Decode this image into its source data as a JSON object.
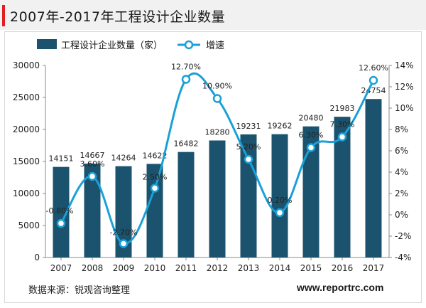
{
  "page": {
    "title": "2007年-2017年工程设计企业数量",
    "source": "数据来源：锐观咨询整理",
    "site": "www.reportrc.com"
  },
  "colors": {
    "bar": "#1b536e",
    "line": "#1aa0d8",
    "marker_fill": "#ffffff",
    "title_accent": "#e02020"
  },
  "chart_data": {
    "type": "bar+line",
    "title": "",
    "categories": [
      "2007",
      "2008",
      "2009",
      "2010",
      "2011",
      "2012",
      "2013",
      "2014",
      "2015",
      "2016",
      "2017"
    ],
    "series": [
      {
        "name": "工程设计企业数量（家）",
        "type": "bar",
        "axis": "left",
        "values": [
          14151,
          14667,
          14264,
          14622,
          16482,
          18280,
          19231,
          19262,
          20480,
          21983,
          24754
        ],
        "labels": [
          "14151",
          "14667",
          "14264",
          "14622",
          "16482",
          "18280",
          "19231",
          "19262",
          "20480",
          "21983",
          "24754"
        ]
      },
      {
        "name": "增速",
        "type": "line",
        "axis": "right",
        "values": [
          -0.8,
          3.6,
          -2.7,
          2.5,
          12.7,
          10.9,
          5.2,
          0.2,
          6.3,
          7.3,
          12.6
        ],
        "labels": [
          "-0.80%",
          "3.60%",
          "-2.70%",
          "2.50%",
          "12.70%",
          "10.90%",
          "5.20%",
          "0.20%",
          "6.30%",
          "7.30%",
          "12.60%"
        ]
      }
    ],
    "left_axis": {
      "ylim": [
        0,
        30000
      ],
      "ticks": [
        0,
        5000,
        10000,
        15000,
        20000,
        25000,
        30000
      ],
      "tick_labels": [
        "0",
        "5000",
        "10000",
        "15000",
        "20000",
        "25000",
        "30000"
      ]
    },
    "right_axis": {
      "ylim": [
        -4,
        14
      ],
      "ticks": [
        -4,
        -2,
        0,
        2,
        4,
        6,
        8,
        10,
        12,
        14
      ],
      "tick_labels": [
        "-4%",
        "-2%",
        "0%",
        "2%",
        "4%",
        "6%",
        "8%",
        "10%",
        "12%",
        "14%"
      ]
    },
    "grid": false,
    "legend_position": "top-center"
  }
}
